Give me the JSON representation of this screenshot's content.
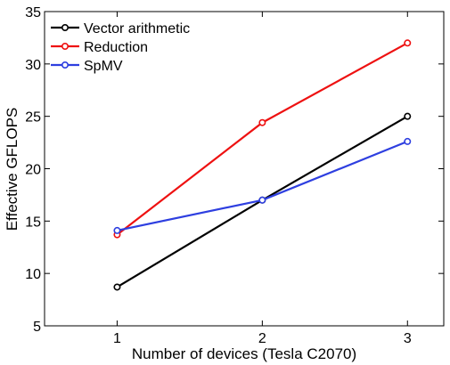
{
  "chart_data": {
    "type": "line",
    "title": "",
    "xlabel": "Number of devices (Tesla C2070)",
    "ylabel": "Effective GFLOPS",
    "x": [
      1,
      2,
      3
    ],
    "xlim": [
      0.5,
      3.25
    ],
    "ylim": [
      5,
      35
    ],
    "xticks": [
      "1",
      "2",
      "3"
    ],
    "yticks": [
      "5",
      "10",
      "15",
      "20",
      "25",
      "30",
      "35"
    ],
    "grid": false,
    "legend_position": "top-left",
    "series": [
      {
        "name": "Vector arithmetic",
        "color": "#000000",
        "marker": "circle",
        "values": [
          8.7,
          17.0,
          25.0
        ]
      },
      {
        "name": "Reduction",
        "color": "#ee1111",
        "marker": "circle",
        "values": [
          13.7,
          24.4,
          32.0
        ]
      },
      {
        "name": "SpMV",
        "color": "#2e3fe0",
        "marker": "circle",
        "values": [
          14.1,
          17.0,
          22.6
        ]
      }
    ]
  }
}
